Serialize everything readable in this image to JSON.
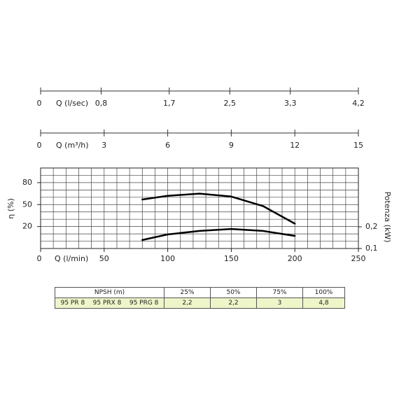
{
  "chart_data": {
    "type": "line",
    "xlabel": "Q (l/min)",
    "ylabel": "η (%)",
    "y2label": "Potenza (kW)",
    "xlim": [
      0,
      250
    ],
    "xticks": [
      0,
      50,
      100,
      150,
      200,
      250
    ],
    "ylim": [
      -10,
      100
    ],
    "yticks": [
      20,
      50,
      80
    ],
    "y2lim": [
      0.1,
      0.471
    ],
    "y2ticks": [
      {
        "value": 0.1,
        "label": "0,1"
      },
      {
        "value": 0.2,
        "label": "0,2"
      }
    ],
    "grid": true,
    "x": [
      80,
      100,
      125,
      150,
      175,
      200
    ],
    "series": [
      {
        "color": "#000000",
        "values": [
          57,
          62,
          65,
          61,
          48,
          24
        ]
      },
      {
        "color": "#000000",
        "axis": "y2",
        "values": [
          0.139,
          0.165,
          0.181,
          0.19,
          0.181,
          0.158
        ]
      }
    ],
    "extra_axes": [
      {
        "label": "Q (l/sec)",
        "xlim": [
          0,
          4.2
        ],
        "xticks": [
          0,
          {
            "value": 0.8,
            "label": "0,8"
          },
          {
            "value": 1.7,
            "label": "1,7"
          },
          {
            "value": 2.5,
            "label": "2,5"
          },
          {
            "value": 3.3,
            "label": "3,3"
          },
          {
            "value": 4.2,
            "label": "4,2"
          }
        ]
      },
      {
        "label": "Q (m³/h)",
        "xlim": [
          0,
          15
        ],
        "xticks": [
          0,
          3,
          6,
          9,
          12,
          15
        ]
      }
    ]
  },
  "npsh_table": {
    "header": [
      "NPSH (m)",
      "25%",
      "50%",
      "75%",
      "100%"
    ],
    "row": {
      "models": [
        "95 PR 8",
        "95 PRX 8",
        "95 PRG 8"
      ],
      "values": [
        "2,2",
        "2,2",
        "3",
        "4,8"
      ]
    }
  }
}
